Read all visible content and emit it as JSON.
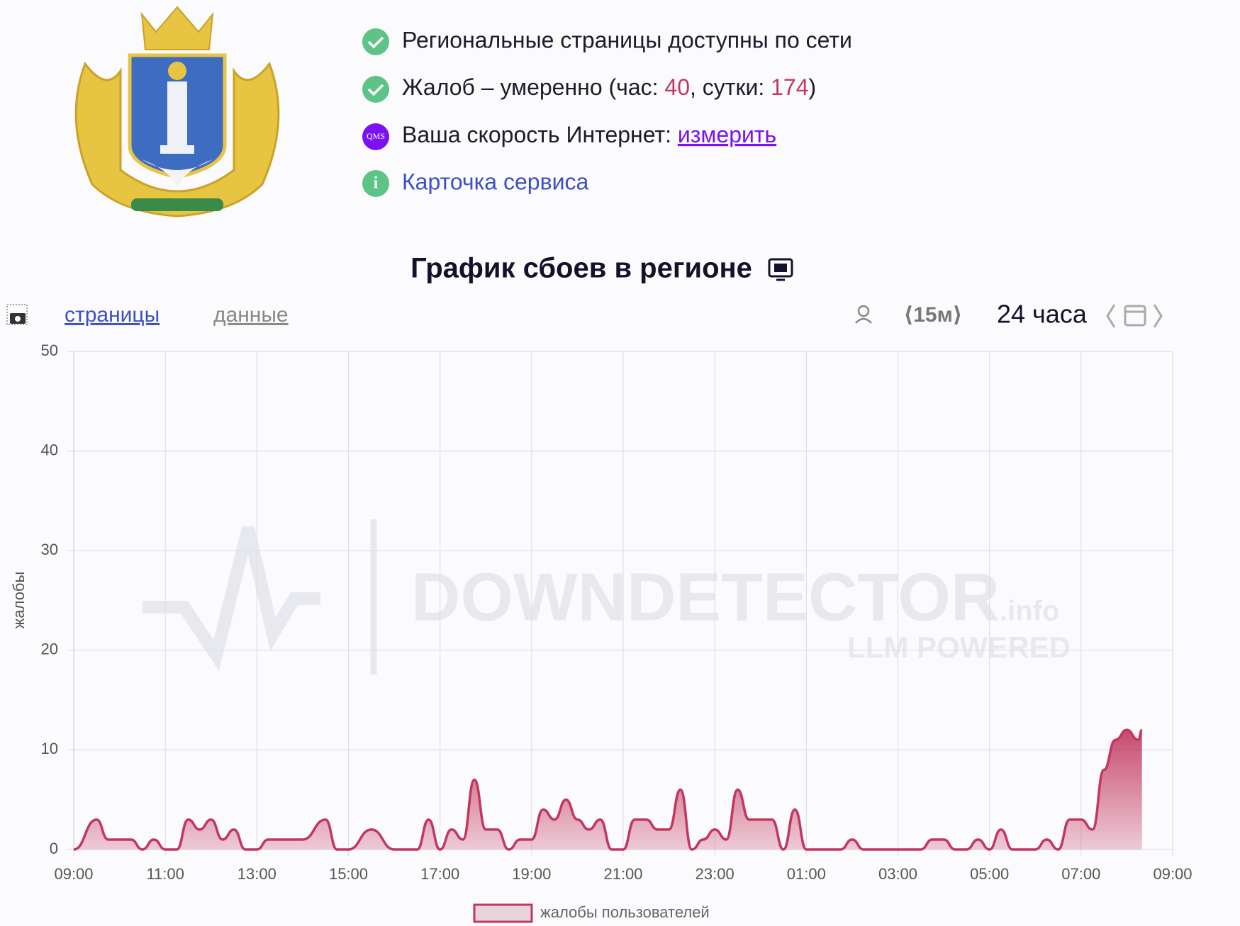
{
  "header": {
    "status": [
      {
        "text": "Региональные страницы доступны по сети"
      },
      {
        "text": "Жалоб – умеренно (час: ",
        "hour": 40,
        "mid": ", сутки: ",
        "day": 174,
        "end": ")"
      },
      {
        "text": "Ваша скорость Интернет: ",
        "link": "измерить",
        "icon": "QMS"
      },
      {
        "link": "Карточка сервиса",
        "icon": "i"
      }
    ]
  },
  "toolbar": {
    "tabs": [
      "страницы",
      "данные"
    ],
    "interval": "⟨15м⟩",
    "period": "24 часа"
  },
  "watermark": {
    "brand": "DOWNDETECTOR",
    "suffix": ".info",
    "tagline": "LLM POWERED"
  },
  "chart_data": {
    "type": "area",
    "title": "График сбоев в регионе",
    "y_label": "жалобы",
    "color": "#c2375f",
    "xlim": [
      0,
      24
    ],
    "xticks": [
      {
        "value": 0,
        "label": "09:00"
      },
      {
        "value": 2,
        "label": "11:00"
      },
      {
        "value": 4,
        "label": "13:00"
      },
      {
        "value": 6,
        "label": "15:00"
      },
      {
        "value": 8,
        "label": "17:00"
      },
      {
        "value": 10,
        "label": "19:00"
      },
      {
        "value": 12,
        "label": "21:00"
      },
      {
        "value": 14,
        "label": "23:00"
      },
      {
        "value": 16,
        "label": "01:00"
      },
      {
        "value": 18,
        "label": "03:00"
      },
      {
        "value": 20,
        "label": "05:00"
      },
      {
        "value": 22,
        "label": "07:00"
      },
      {
        "value": 24,
        "label": "09:00"
      }
    ],
    "ylim": [
      0,
      50
    ],
    "yticks": [
      0,
      10,
      20,
      30,
      40,
      50
    ],
    "grid": true,
    "series": [
      {
        "name": "жалобы пользователей",
        "color": "#c2375f",
        "x": [
          0,
          0.5,
          0.75,
          1.25,
          1.5,
          1.75,
          2,
          2.25,
          2.5,
          2.75,
          3,
          3.25,
          3.5,
          3.75,
          4,
          4.25,
          5,
          5.5,
          5.75,
          6,
          6.5,
          7,
          7.5,
          7.75,
          8,
          8.25,
          8.5,
          8.75,
          9,
          9.25,
          9.5,
          9.75,
          10,
          10.25,
          10.5,
          10.75,
          11,
          11.25,
          11.5,
          11.75,
          12,
          12.25,
          12.5,
          12.75,
          13,
          13.25,
          13.5,
          13.75,
          14,
          14.25,
          14.5,
          14.75,
          15.25,
          15.5,
          15.75,
          16,
          16.75,
          17,
          17.25,
          18.5,
          18.75,
          19,
          19.25,
          19.5,
          19.75,
          20,
          20.25,
          20.5,
          21,
          21.25,
          21.5,
          21.75,
          22,
          22.25,
          22.5,
          22.75,
          23,
          23.25,
          23.33
        ],
        "values": [
          0,
          3,
          1,
          1,
          0,
          1,
          0,
          0,
          3,
          2,
          3,
          1,
          2,
          0,
          0,
          1,
          1,
          3,
          0,
          0,
          2,
          0,
          0,
          3,
          0,
          2,
          1,
          7,
          2,
          2,
          0,
          1,
          1,
          4,
          3,
          5,
          3,
          2,
          3,
          0,
          0,
          3,
          3,
          2,
          2,
          6,
          0,
          1,
          2,
          1,
          6,
          3,
          3,
          0,
          4,
          0,
          0,
          1,
          0,
          0,
          1,
          1,
          0,
          0,
          1,
          0,
          2,
          0,
          0,
          1,
          0,
          3,
          3,
          2,
          8,
          11,
          12,
          11,
          12
        ]
      }
    ]
  }
}
